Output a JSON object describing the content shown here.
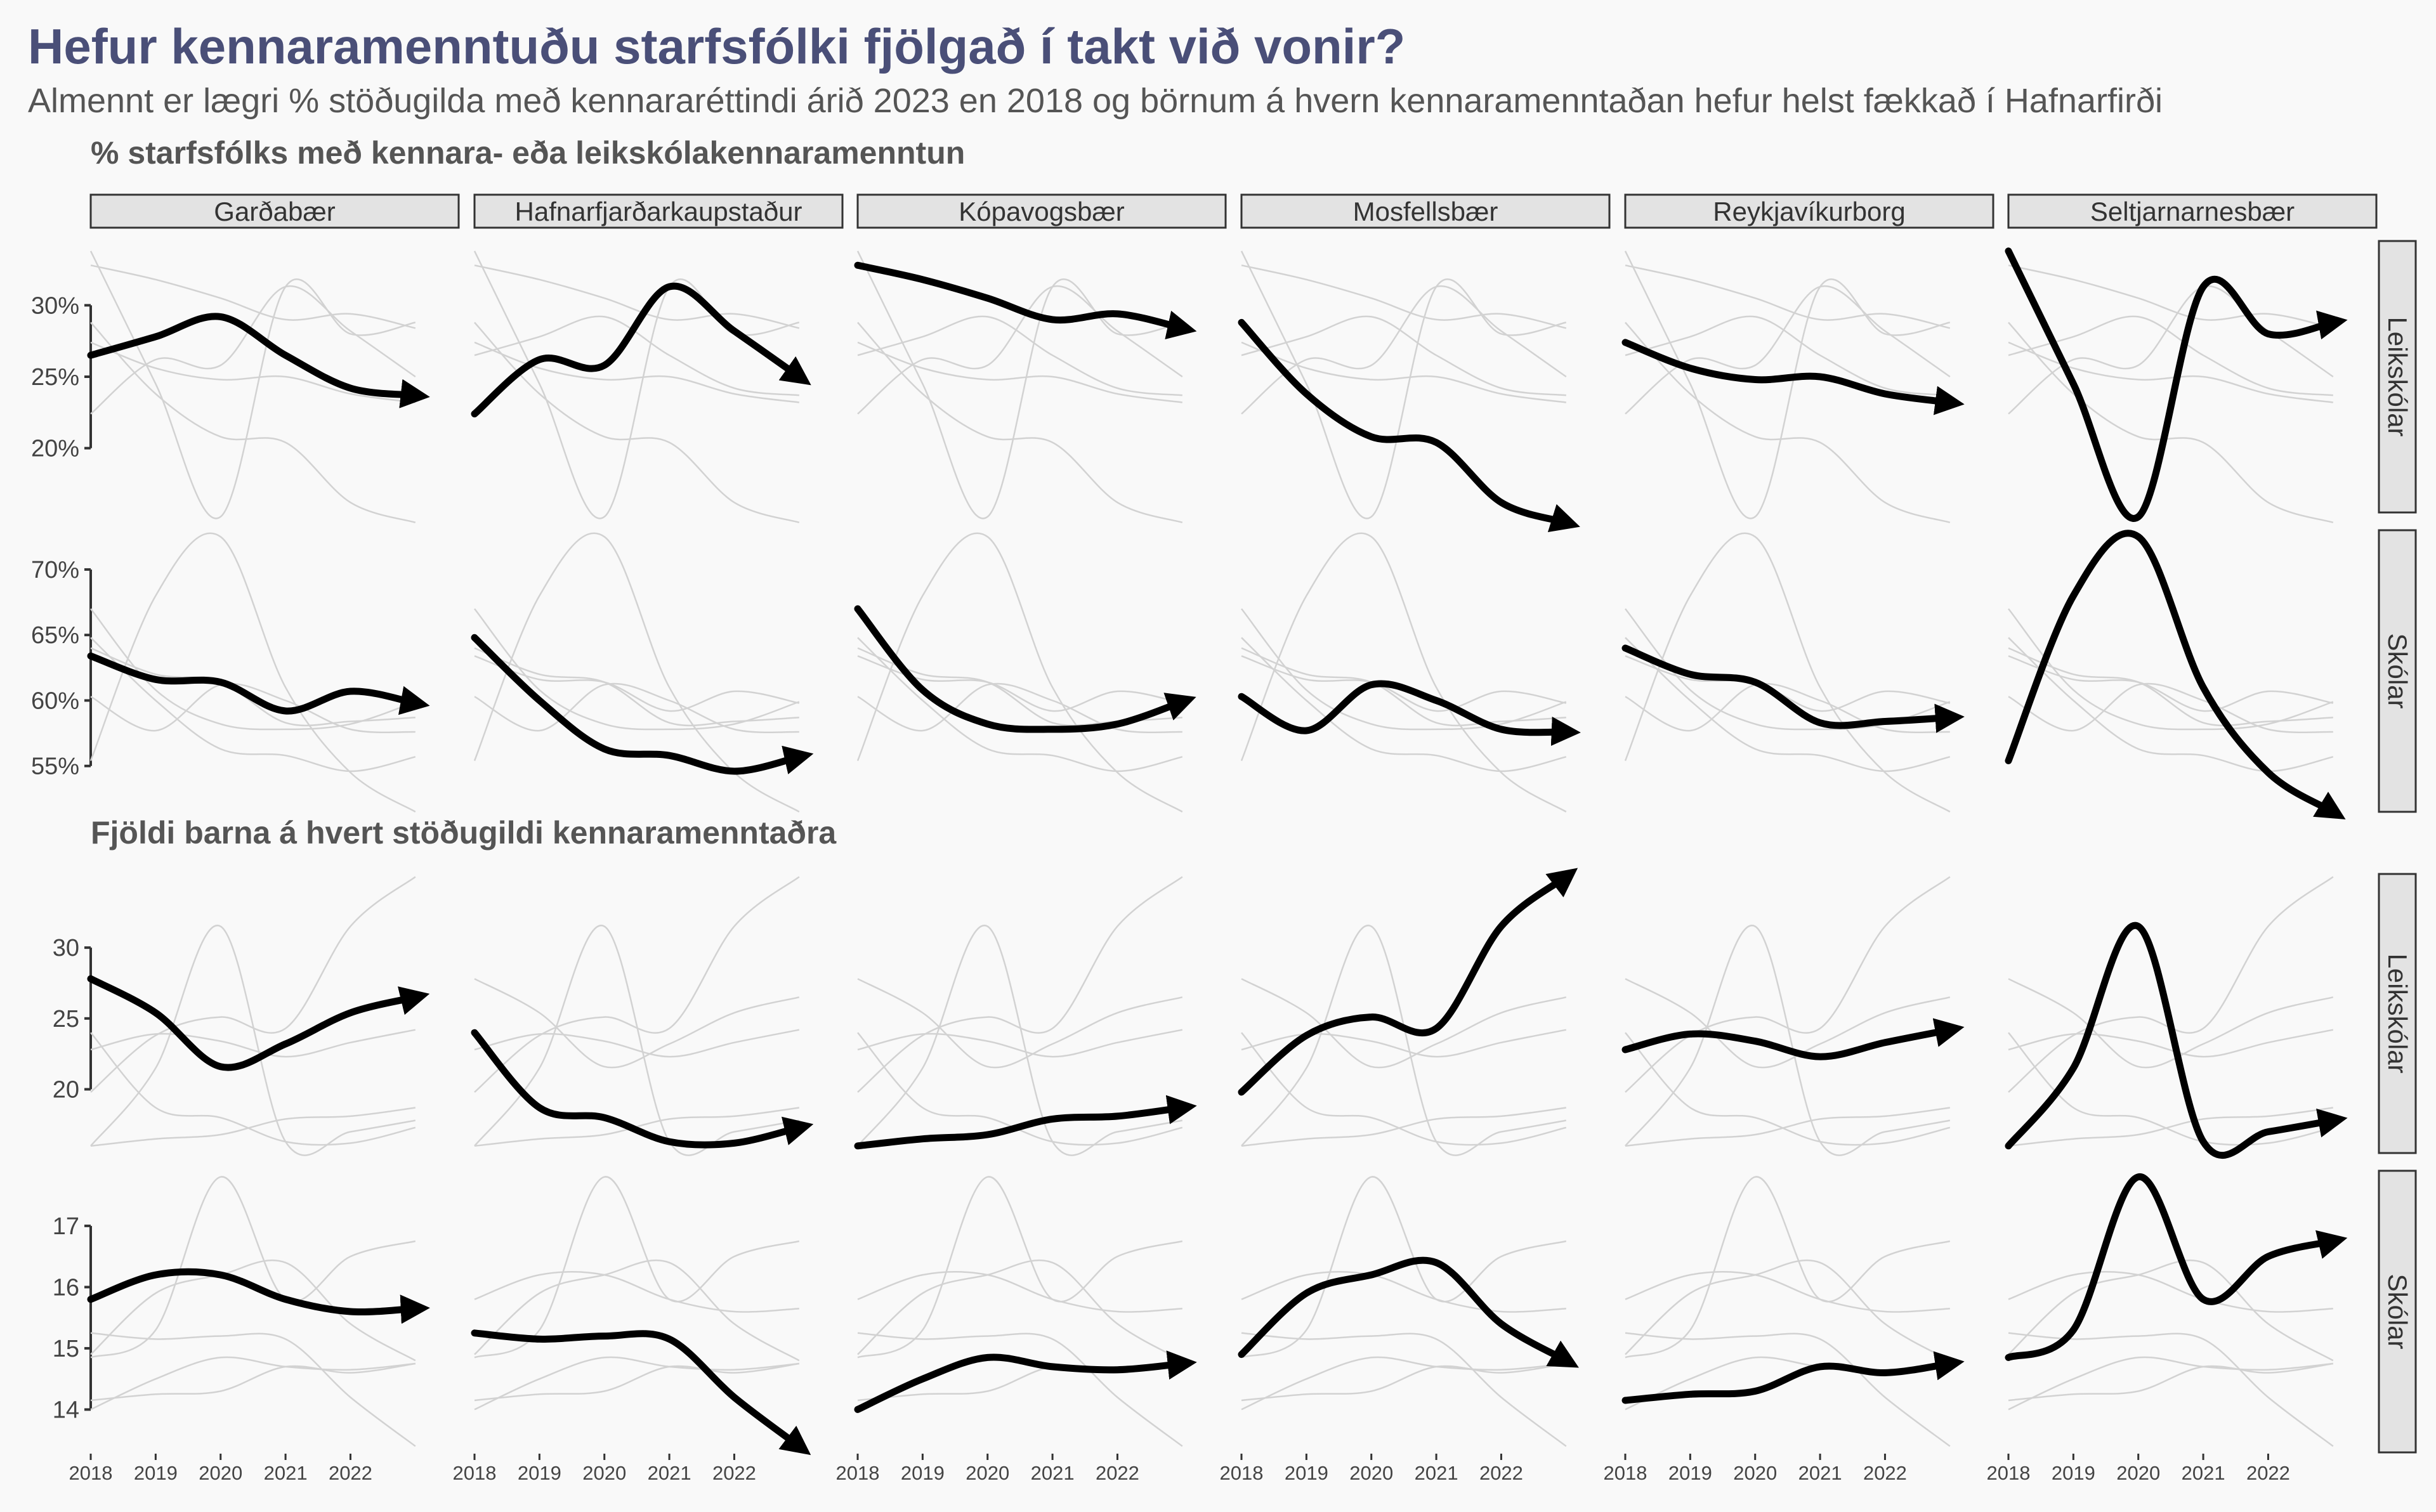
{
  "title": "Hefur kennaramenntuðu starfsfólki fjölgað í takt við vonir?",
  "subtitle": "Almennt er lægri % stöðugilda með kennararéttindi árið 2023 en 2018 og börnum á hvern kennaramenntaðan hefur helst fækkað í Hafnarfirði",
  "chart_data": [
    {
      "type": "line",
      "title": "% starfsfólks með kennara- eða leikskólakennaramenntun",
      "x": [
        2018,
        2019,
        2020,
        2021,
        2022,
        2023
      ],
      "x_ticks": [
        "2018",
        "2019",
        "2020",
        "2021",
        "2022"
      ],
      "facets": [
        "Garðabær",
        "Hafnarfjarðarkaupstaður",
        "Kópavogsbær",
        "Mosfellsbær",
        "Reykjavíkurborg",
        "Seltjarnarnesbær"
      ],
      "rows": [
        {
          "label": "Leikskólar",
          "ylim": [
            15.5,
            34.5
          ],
          "y_ticks": [
            20,
            25,
            30
          ],
          "y_tick_labels": [
            "20%",
            "25%",
            "30%"
          ],
          "series": [
            {
              "name": "Garðabær",
              "values": [
                26.5,
                27.8,
                29.2,
                26.5,
                24.2,
                23.7
              ]
            },
            {
              "name": "Hafnarfjarðarkaupstaður",
              "values": [
                22.4,
                26.2,
                25.8,
                31.3,
                28.2,
                25.0
              ]
            },
            {
              "name": "Kópavogsbær",
              "values": [
                32.8,
                31.8,
                30.5,
                29.0,
                29.4,
                28.4
              ]
            },
            {
              "name": "Mosfellsbær",
              "values": [
                28.8,
                23.8,
                20.8,
                20.4,
                16.2,
                14.8
              ]
            },
            {
              "name": "Reykjavíkurborg",
              "values": [
                27.4,
                25.6,
                24.8,
                25.0,
                23.8,
                23.2
              ]
            },
            {
              "name": "Seltjarnarnesbær",
              "values": [
                33.8,
                24.5,
                15.2,
                31.3,
                28.0,
                28.8
              ]
            }
          ]
        },
        {
          "label": "Skólar",
          "ylim": [
            51.5,
            73
          ],
          "y_ticks": [
            55,
            60,
            65,
            70
          ],
          "y_tick_labels": [
            "55%",
            "60%",
            "65%",
            "70%"
          ],
          "series": [
            {
              "name": "Garðabær",
              "values": [
                63.4,
                61.6,
                61.4,
                59.2,
                60.7,
                59.8
              ]
            },
            {
              "name": "Hafnarfjarðarkaupstaður",
              "values": [
                64.8,
                60.0,
                56.3,
                55.8,
                54.6,
                55.7
              ]
            },
            {
              "name": "Kópavogsbær",
              "values": [
                67.0,
                60.8,
                58.2,
                57.8,
                58.2,
                59.9
              ]
            },
            {
              "name": "Mosfellsbær",
              "values": [
                60.3,
                57.7,
                61.2,
                60.0,
                57.8,
                57.6
              ]
            },
            {
              "name": "Reykjavíkurborg",
              "values": [
                64.0,
                62.0,
                61.4,
                58.3,
                58.4,
                58.7
              ]
            },
            {
              "name": "Seltjarnarnesbær",
              "values": [
                55.4,
                68.0,
                72.5,
                61.0,
                54.5,
                51.5
              ]
            }
          ]
        }
      ]
    },
    {
      "type": "line",
      "title": "Fjöldi barna á hvert stöðugildi kennaramenntaðra",
      "x": [
        2018,
        2019,
        2020,
        2021,
        2022,
        2023
      ],
      "x_ticks": [
        "2018",
        "2019",
        "2020",
        "2021",
        "2022"
      ],
      "facets": [
        "Garðabær",
        "Hafnarfjarðarkaupstaður",
        "Kópavogsbær",
        "Mosfellsbær",
        "Reykjavíkurborg",
        "Seltjarnarnesbær"
      ],
      "rows": [
        {
          "label": "Leikskólar",
          "ylim": [
            15.5,
            35.2
          ],
          "y_ticks": [
            20,
            25,
            30
          ],
          "y_tick_labels": [
            "20",
            "25",
            "30"
          ],
          "series": [
            {
              "name": "Garðabær",
              "values": [
                27.8,
                25.4,
                21.6,
                23.2,
                25.4,
                26.5
              ]
            },
            {
              "name": "Hafnarfjarðarkaupstaður",
              "values": [
                24.0,
                18.7,
                18.0,
                16.3,
                16.2,
                17.3
              ]
            },
            {
              "name": "Kópavogsbær",
              "values": [
                16.0,
                16.5,
                16.8,
                17.9,
                18.1,
                18.7
              ]
            },
            {
              "name": "Mosfellsbær",
              "values": [
                19.8,
                23.8,
                25.1,
                24.3,
                31.5,
                35.0
              ]
            },
            {
              "name": "Reykjavíkurborg",
              "values": [
                22.8,
                23.9,
                23.4,
                22.3,
                23.3,
                24.2
              ]
            },
            {
              "name": "Seltjarnarnesbær",
              "values": [
                16.0,
                21.5,
                31.5,
                16.3,
                17.0,
                17.8
              ]
            }
          ]
        },
        {
          "label": "Skólar",
          "ylim": [
            13.3,
            17.9
          ],
          "y_ticks": [
            14,
            15,
            16,
            17
          ],
          "y_tick_labels": [
            "14",
            "15",
            "16",
            "17"
          ],
          "series": [
            {
              "name": "Garðabær",
              "values": [
                15.8,
                16.2,
                16.2,
                15.8,
                15.6,
                15.65
              ]
            },
            {
              "name": "Hafnarfjarðarkaupstaður",
              "values": [
                15.25,
                15.15,
                15.2,
                15.15,
                14.2,
                13.4
              ]
            },
            {
              "name": "Kópavogsbær",
              "values": [
                14.0,
                14.5,
                14.85,
                14.7,
                14.65,
                14.75
              ]
            },
            {
              "name": "Mosfellsbær",
              "values": [
                14.9,
                15.9,
                16.2,
                16.4,
                15.4,
                14.8
              ]
            },
            {
              "name": "Reykjavíkurborg",
              "values": [
                14.15,
                14.25,
                14.3,
                14.7,
                14.6,
                14.75
              ]
            },
            {
              "name": "Seltjarnarnesbær",
              "values": [
                14.85,
                15.3,
                17.8,
                15.8,
                16.5,
                16.75
              ]
            }
          ]
        }
      ]
    }
  ]
}
